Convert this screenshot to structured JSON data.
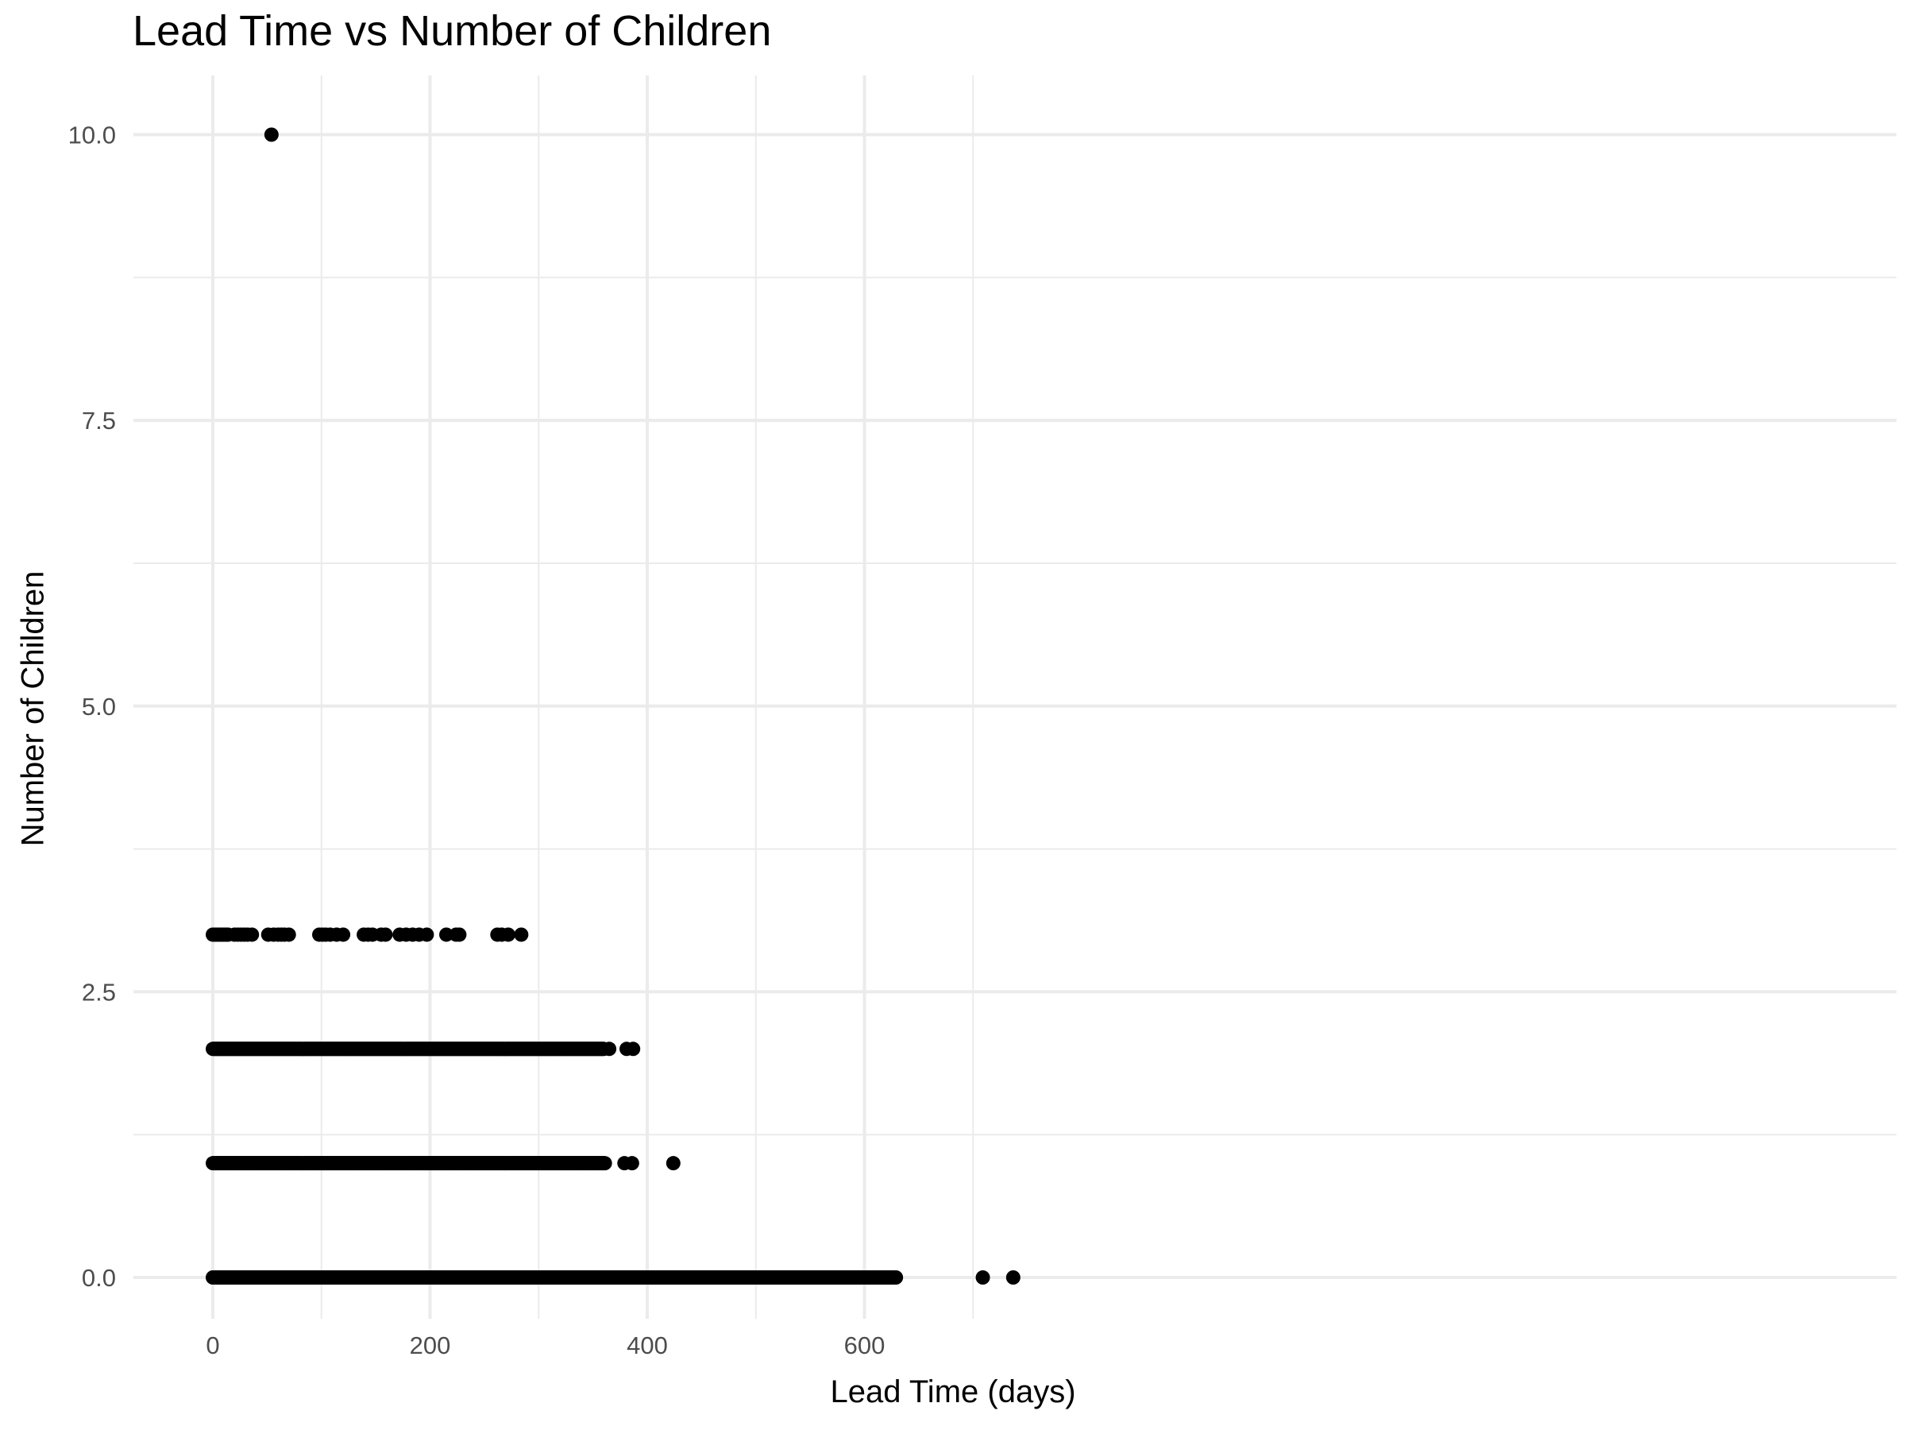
{
  "chart_data": {
    "type": "scatter",
    "title": "Lead Time vs Number of Children",
    "xlabel": "Lead Time (days)",
    "ylabel": "Number of Children",
    "xlim": [
      -35,
      775
    ],
    "ylim": [
      -0.4,
      10.45
    ],
    "x_ticks": [
      0,
      200,
      400,
      600
    ],
    "x_tick_labels": [
      "0",
      "200",
      "400",
      "600"
    ],
    "y_ticks": [
      0,
      2.5,
      5,
      7.5,
      10
    ],
    "y_tick_labels": [
      "0.0",
      "2.5",
      "5.0",
      "7.5",
      "10.0"
    ],
    "grid": true,
    "legend": "none",
    "point_color": "#000000",
    "series": [
      {
        "values": [
          {
            "x": 54,
            "y": 10
          },
          {
            "x": 0,
            "y": 3
          },
          {
            "x": 2,
            "y": 3
          },
          {
            "x": 4,
            "y": 3
          },
          {
            "x": 6,
            "y": 3
          },
          {
            "x": 8,
            "y": 3
          },
          {
            "x": 10,
            "y": 3
          },
          {
            "x": 12,
            "y": 3
          },
          {
            "x": 14,
            "y": 3
          },
          {
            "x": 20,
            "y": 3
          },
          {
            "x": 23,
            "y": 3
          },
          {
            "x": 26,
            "y": 3
          },
          {
            "x": 29,
            "y": 3
          },
          {
            "x": 32,
            "y": 3
          },
          {
            "x": 36,
            "y": 3
          },
          {
            "x": 51,
            "y": 3
          },
          {
            "x": 56,
            "y": 3
          },
          {
            "x": 60,
            "y": 3
          },
          {
            "x": 63,
            "y": 3
          },
          {
            "x": 66,
            "y": 3
          },
          {
            "x": 70,
            "y": 3
          },
          {
            "x": 98,
            "y": 3
          },
          {
            "x": 101,
            "y": 3
          },
          {
            "x": 104,
            "y": 3
          },
          {
            "x": 108,
            "y": 3
          },
          {
            "x": 114,
            "y": 3
          },
          {
            "x": 120,
            "y": 3
          },
          {
            "x": 139,
            "y": 3
          },
          {
            "x": 143,
            "y": 3
          },
          {
            "x": 147,
            "y": 3
          },
          {
            "x": 155,
            "y": 3
          },
          {
            "x": 159,
            "y": 3
          },
          {
            "x": 172,
            "y": 3
          },
          {
            "x": 178,
            "y": 3
          },
          {
            "x": 184,
            "y": 3
          },
          {
            "x": 190,
            "y": 3
          },
          {
            "x": 197,
            "y": 3
          },
          {
            "x": 215,
            "y": 3
          },
          {
            "x": 224,
            "y": 3
          },
          {
            "x": 227,
            "y": 3
          },
          {
            "x": 262,
            "y": 3
          },
          {
            "x": 266,
            "y": 3
          },
          {
            "x": 272,
            "y": 3
          },
          {
            "x": 284,
            "y": 3
          },
          {
            "x": 365,
            "y": 2
          },
          {
            "x": 381,
            "y": 2
          },
          {
            "x": 387,
            "y": 2
          },
          {
            "x": 379,
            "y": 1
          },
          {
            "x": 386,
            "y": 1
          },
          {
            "x": 424,
            "y": 1
          },
          {
            "x": 709,
            "y": 0
          },
          {
            "x": 737,
            "y": 0
          }
        ],
        "dense_runs": [
          {
            "y": 2,
            "x_from": 0,
            "x_to": 360
          },
          {
            "y": 1,
            "x_from": 0,
            "x_to": 361
          },
          {
            "y": 0,
            "x_from": 0,
            "x_to": 629
          }
        ]
      }
    ]
  }
}
